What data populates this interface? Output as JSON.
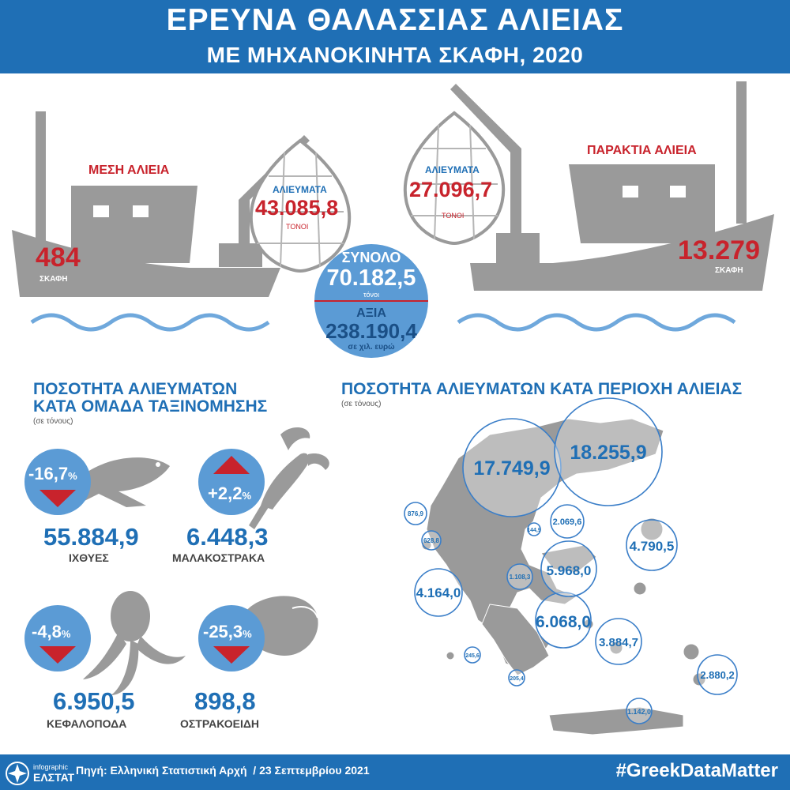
{
  "header": {
    "title": "ΕΡΕΥΝΑ ΘΑΛΑΣΣΙΑΣ ΑΛΙΕΙΑΣ",
    "subtitle": "ΜΕ ΜΗΧΑΝΟΚΙΝΗΤΑ ΣΚΑΦΗ, 2020"
  },
  "boats": {
    "medium": {
      "label": "ΜΕΣΗ ΑΛΙΕΙΑ",
      "vessels": "484",
      "vessels_unit": "ΣΚΑΦΗ",
      "catch_label": "ΑΛΙΕΥΜΑΤΑ",
      "catch_value": "43.085,8",
      "catch_unit": "ΤΟΝΟΙ"
    },
    "coastal": {
      "label": "ΠΑΡΑΚΤΙΑ ΑΛΙΕΙΑ",
      "vessels": "13.279",
      "vessels_unit": "ΣΚΑΦΗ",
      "catch_label": "ΑΛΙΕΥΜΑΤΑ",
      "catch_value": "27.096,7",
      "catch_unit": "ΤΟΝΟΙ"
    }
  },
  "total": {
    "label": "ΣΥΝΟΛΟ",
    "value": "70.182,5",
    "unit": "τόνοι",
    "value_label": "ΑΞΙΑ",
    "value_amount": "238.190,4",
    "value_unit": "σε χιλ. ευρώ"
  },
  "groups_section": {
    "title_line1": "ΠΟΣΟΤΗΤΑ ΑΛΙΕΥΜΑΤΩΝ",
    "title_line2": "ΚΑΤΑ ΟΜΑΔΑ ΤΑΞΙΝΟΜΗΣΗΣ",
    "note": "(σε τόνους)",
    "items": [
      {
        "name": "ΙΧΘΥΕΣ",
        "value": "55.884,9",
        "change": "-16,7",
        "pct_sign": "%",
        "direction": "down",
        "icon": "fish-icon"
      },
      {
        "name": "ΜΑΛΑΚΟΣΤΡΑΚΑ",
        "value": "6.448,3",
        "change": "+2,2",
        "pct_sign": "%",
        "direction": "up",
        "icon": "lobster-icon"
      },
      {
        "name": "ΚΕΦΑΛΟΠΟΔΑ",
        "value": "6.950,5",
        "change": "-4,8",
        "pct_sign": "%",
        "direction": "down",
        "icon": "octopus-icon"
      },
      {
        "name": "ΟΣΤΡΑΚΟΕΙΔΗ",
        "value": "898,8",
        "change": "-25,3",
        "pct_sign": "%",
        "direction": "down",
        "icon": "mussel-icon"
      }
    ]
  },
  "regions_section": {
    "title": "ΠΟΣΟΤΗΤΑ ΑΛΙΕΥΜΑΤΩΝ ΚΑΤΑ ΠΕΡΙΟΧΗ ΑΛΙΕΙΑΣ",
    "note": "(σε τόνους)"
  },
  "chart_data": {
    "type": "bubble-map",
    "title": "ΠΟΣΟΤΗΤΑ ΑΛΙΕΥΜΑΤΩΝ ΚΑΤΑ ΠΕΡΙΟΧΗ ΑΛΙΕΙΑΣ",
    "unit": "(σε τόνους)",
    "values": [
      "18.255,9",
      "17.749,9",
      "6.068,0",
      "5.968,0",
      "4.790,5",
      "4.164,0",
      "3.884,7",
      "2.880,2",
      "2.069,6",
      "1.142,0",
      "1.108,3",
      "876,9",
      "628,8",
      "245,6",
      "205,4",
      "144,9"
    ],
    "numeric_values": [
      18255.9,
      17749.9,
      6068.0,
      5968.0,
      4790.5,
      4164.0,
      3884.7,
      2880.2,
      2069.6,
      1142.0,
      1108.3,
      876.9,
      628.8,
      245.6,
      205.4,
      144.9
    ],
    "colors": {
      "circle_stroke": "#3a7ec8",
      "map_fill": "#8a8a8a",
      "label": "#1f6fb5"
    }
  },
  "footer": {
    "logo_text": "ΕΛΣΤΑΤ",
    "logo_sub": "infographic",
    "source": "Πηγή: Ελληνική Στατιστική Αρχή  / 23 Σεπτεμβρίου 2021",
    "hashtag": "#GreekDataMatter"
  },
  "colors": {
    "brand_blue": "#1f6fb5",
    "accent_red": "#c8232c",
    "grey": "#8a8a8a",
    "light_blue": "#5b9bd5"
  }
}
